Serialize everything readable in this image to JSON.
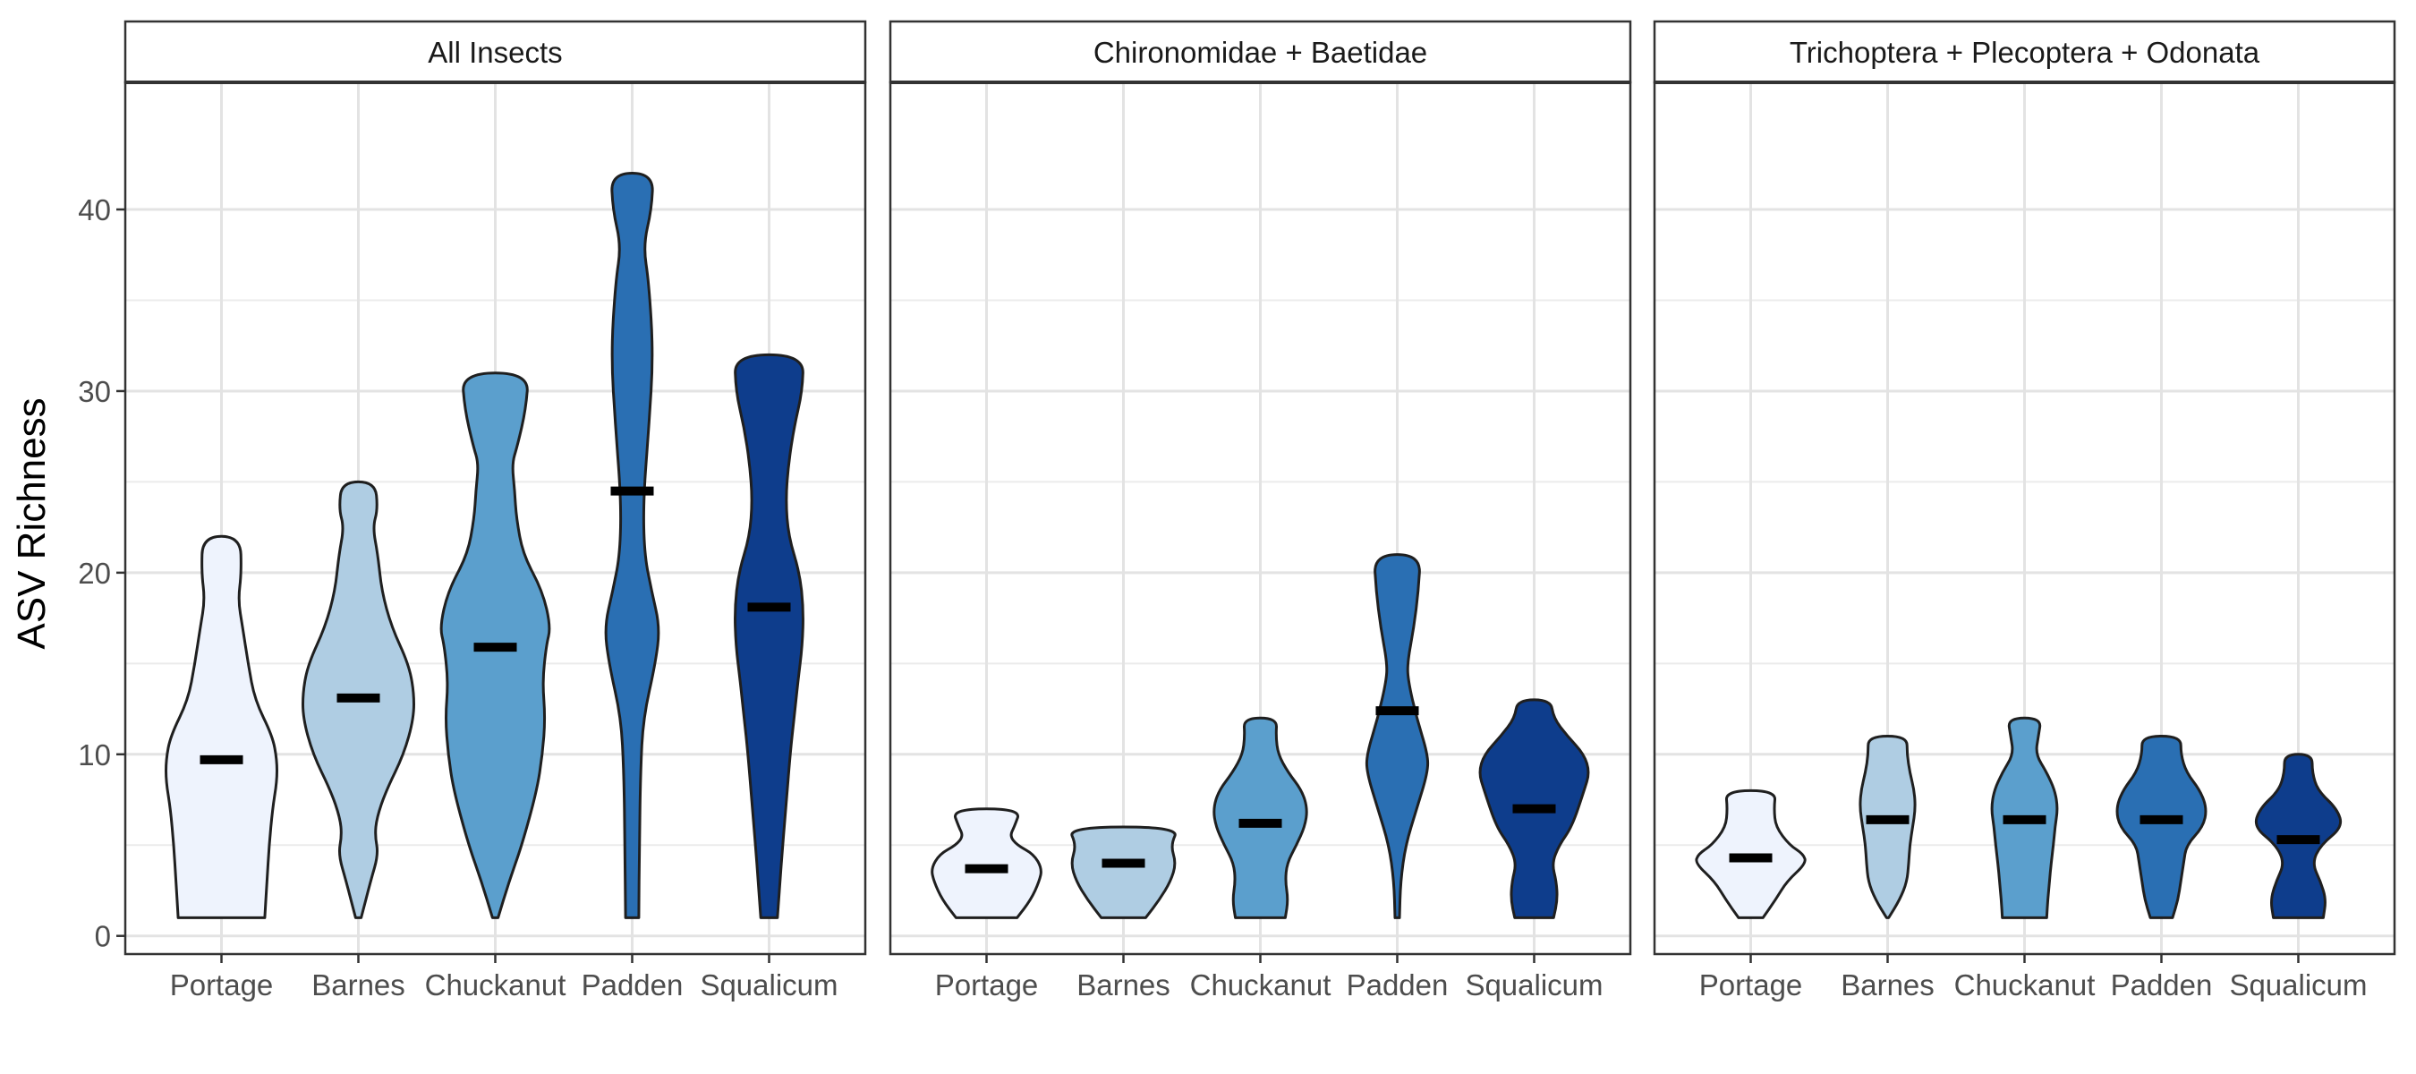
{
  "chart_data": {
    "type": "violin",
    "ylabel": "ASV Richness",
    "xlabel": "",
    "ylim": [
      -1,
      47
    ],
    "yticks": [
      0,
      10,
      20,
      30,
      40
    ],
    "categories": [
      "Portage",
      "Barnes",
      "Chuckanut",
      "Padden",
      "Squalicum"
    ],
    "colors": {
      "Portage": "#eef3fd",
      "Barnes": "#afcde3",
      "Chuckanut": "#5b9fcd",
      "Padden": "#2a6fb3",
      "Squalicum": "#0e3d8c"
    },
    "grid": true,
    "legend": "none",
    "panels": [
      {
        "title": "All Insects",
        "violins": [
          {
            "category": "Portage",
            "min": 1,
            "max": 22,
            "median": 9.7,
            "profile": [
              [
                1,
                0.78
              ],
              [
                3,
                0.82
              ],
              [
                5,
                0.86
              ],
              [
                7,
                0.92
              ],
              [
                8.5,
                1.0
              ],
              [
                9.7,
                1.0
              ],
              [
                11,
                0.92
              ],
              [
                13,
                0.6
              ],
              [
                15,
                0.48
              ],
              [
                17,
                0.38
              ],
              [
                18.5,
                0.3
              ],
              [
                20,
                0.36
              ],
              [
                22,
                0.34
              ]
            ]
          },
          {
            "category": "Barnes",
            "min": 1,
            "max": 25,
            "median": 13.1,
            "profile": [
              [
                1,
                0.05
              ],
              [
                3,
                0.22
              ],
              [
                4.5,
                0.36
              ],
              [
                5.5,
                0.3
              ],
              [
                6.5,
                0.33
              ],
              [
                8,
                0.5
              ],
              [
                10,
                0.82
              ],
              [
                12,
                1.0
              ],
              [
                13.5,
                1.0
              ],
              [
                15,
                0.9
              ],
              [
                17,
                0.6
              ],
              [
                19,
                0.42
              ],
              [
                21,
                0.35
              ],
              [
                22.5,
                0.26
              ],
              [
                23.5,
                0.35
              ],
              [
                25,
                0.3
              ]
            ]
          },
          {
            "category": "Chuckanut",
            "min": 1,
            "max": 31,
            "median": 15.9,
            "profile": [
              [
                1,
                0.05
              ],
              [
                3,
                0.25
              ],
              [
                5,
                0.48
              ],
              [
                8,
                0.75
              ],
              [
                10,
                0.85
              ],
              [
                12,
                0.9
              ],
              [
                14,
                0.85
              ],
              [
                16,
                0.92
              ],
              [
                17,
                1.0
              ],
              [
                19,
                0.85
              ],
              [
                21,
                0.5
              ],
              [
                23,
                0.38
              ],
              [
                24.5,
                0.35
              ],
              [
                26,
                0.3
              ],
              [
                27,
                0.4
              ],
              [
                29,
                0.55
              ],
              [
                31,
                0.6
              ]
            ]
          },
          {
            "category": "Padden",
            "min": 1,
            "max": 42,
            "median": 24.5,
            "profile": [
              [
                1,
                0.12
              ],
              [
                5,
                0.13
              ],
              [
                9,
                0.15
              ],
              [
                12,
                0.2
              ],
              [
                15,
                0.42
              ],
              [
                17,
                0.5
              ],
              [
                19,
                0.35
              ],
              [
                21,
                0.22
              ],
              [
                24,
                0.2
              ],
              [
                28,
                0.3
              ],
              [
                32,
                0.38
              ],
              [
                36,
                0.3
              ],
              [
                38,
                0.2
              ],
              [
                40,
                0.35
              ],
              [
                42,
                0.38
              ]
            ]
          },
          {
            "category": "Squalicum",
            "min": 1,
            "max": 32,
            "median": 18.1,
            "profile": [
              [
                1,
                0.15
              ],
              [
                4,
                0.22
              ],
              [
                7,
                0.3
              ],
              [
                10,
                0.38
              ],
              [
                12,
                0.45
              ],
              [
                14,
                0.52
              ],
              [
                16,
                0.6
              ],
              [
                18,
                0.62
              ],
              [
                20,
                0.55
              ],
              [
                22,
                0.35
              ],
              [
                24,
                0.3
              ],
              [
                26,
                0.35
              ],
              [
                28,
                0.45
              ],
              [
                30,
                0.6
              ],
              [
                32,
                0.62
              ]
            ]
          }
        ]
      },
      {
        "title": "Chironomidae + Baetidae",
        "violins": [
          {
            "category": "Portage",
            "min": 1,
            "max": 7,
            "median": 3.7,
            "profile": [
              [
                1,
                0.55
              ],
              [
                2,
                0.8
              ],
              [
                3,
                0.95
              ],
              [
                3.7,
                1.0
              ],
              [
                4.5,
                0.85
              ],
              [
                5,
                0.55
              ],
              [
                5.5,
                0.42
              ],
              [
                6,
                0.5
              ],
              [
                7,
                0.62
              ]
            ]
          },
          {
            "category": "Barnes",
            "min": 1,
            "max": 6,
            "median": 4.0,
            "profile": [
              [
                1,
                0.4
              ],
              [
                2,
                0.65
              ],
              [
                3,
                0.85
              ],
              [
                4,
                0.95
              ],
              [
                5,
                0.85
              ],
              [
                6,
                1.0
              ]
            ]
          },
          {
            "category": "Chuckanut",
            "min": 1,
            "max": 12,
            "median": 6.2,
            "profile": [
              [
                1,
                0.45
              ],
              [
                2,
                0.5
              ],
              [
                3,
                0.45
              ],
              [
                4,
                0.48
              ],
              [
                5,
                0.65
              ],
              [
                6,
                0.8
              ],
              [
                7,
                0.85
              ],
              [
                8,
                0.75
              ],
              [
                9,
                0.5
              ],
              [
                10,
                0.32
              ],
              [
                11,
                0.28
              ],
              [
                12,
                0.3
              ]
            ]
          },
          {
            "category": "Padden",
            "min": 1,
            "max": 21,
            "median": 12.4,
            "profile": [
              [
                1,
                0.04
              ],
              [
                3,
                0.06
              ],
              [
                5,
                0.15
              ],
              [
                7,
                0.35
              ],
              [
                9,
                0.55
              ],
              [
                10,
                0.55
              ],
              [
                12,
                0.35
              ],
              [
                14,
                0.2
              ],
              [
                15,
                0.18
              ],
              [
                17,
                0.3
              ],
              [
                19,
                0.38
              ],
              [
                21,
                0.42
              ]
            ]
          },
          {
            "category": "Squalicum",
            "min": 1,
            "max": 13,
            "median": 7.0,
            "profile": [
              [
                1,
                0.35
              ],
              [
                2,
                0.42
              ],
              [
                3,
                0.4
              ],
              [
                4,
                0.32
              ],
              [
                5,
                0.45
              ],
              [
                6,
                0.68
              ],
              [
                8,
                0.9
              ],
              [
                9,
                1.0
              ],
              [
                10,
                0.9
              ],
              [
                11,
                0.6
              ],
              [
                12,
                0.35
              ],
              [
                13,
                0.3
              ]
            ]
          }
        ]
      },
      {
        "title": "Trichoptera + Plecoptera + Odonata",
        "violins": [
          {
            "category": "Portage",
            "min": 1,
            "max": 8,
            "median": 4.3,
            "profile": [
              [
                1,
                0.22
              ],
              [
                2,
                0.45
              ],
              [
                3,
                0.65
              ],
              [
                4,
                1.0
              ],
              [
                4.5,
                0.95
              ],
              [
                5,
                0.7
              ],
              [
                6,
                0.45
              ],
              [
                7,
                0.42
              ],
              [
                8,
                0.45
              ]
            ]
          },
          {
            "category": "Barnes",
            "min": 1,
            "max": 11,
            "median": 6.4,
            "profile": [
              [
                1,
                0.02
              ],
              [
                2,
                0.22
              ],
              [
                3,
                0.35
              ],
              [
                4,
                0.38
              ],
              [
                5,
                0.4
              ],
              [
                6,
                0.45
              ],
              [
                7,
                0.5
              ],
              [
                8,
                0.48
              ],
              [
                9,
                0.4
              ],
              [
                10,
                0.35
              ],
              [
                11,
                0.35
              ]
            ]
          },
          {
            "category": "Chuckanut",
            "min": 1,
            "max": 12,
            "median": 6.4,
            "profile": [
              [
                1,
                0.4
              ],
              [
                2,
                0.42
              ],
              [
                3,
                0.45
              ],
              [
                4,
                0.48
              ],
              [
                5,
                0.52
              ],
              [
                6,
                0.55
              ],
              [
                7,
                0.6
              ],
              [
                8,
                0.55
              ],
              [
                9,
                0.4
              ],
              [
                10,
                0.2
              ],
              [
                11,
                0.25
              ],
              [
                12,
                0.3
              ]
            ]
          },
          {
            "category": "Padden",
            "min": 1,
            "max": 11,
            "median": 6.4,
            "profile": [
              [
                1,
                0.2
              ],
              [
                2,
                0.3
              ],
              [
                3,
                0.35
              ],
              [
                4,
                0.4
              ],
              [
                5,
                0.45
              ],
              [
                6,
                0.75
              ],
              [
                7,
                0.82
              ],
              [
                8,
                0.7
              ],
              [
                9,
                0.45
              ],
              [
                10,
                0.35
              ],
              [
                11,
                0.35
              ]
            ]
          },
          {
            "category": "Squalicum",
            "min": 1,
            "max": 10,
            "median": 5.3,
            "profile": [
              [
                1,
                0.45
              ],
              [
                2,
                0.5
              ],
              [
                3,
                0.4
              ],
              [
                4,
                0.25
              ],
              [
                5,
                0.4
              ],
              [
                6,
                0.8
              ],
              [
                7,
                0.7
              ],
              [
                8,
                0.35
              ],
              [
                9,
                0.25
              ],
              [
                10,
                0.25
              ]
            ]
          }
        ]
      }
    ]
  }
}
